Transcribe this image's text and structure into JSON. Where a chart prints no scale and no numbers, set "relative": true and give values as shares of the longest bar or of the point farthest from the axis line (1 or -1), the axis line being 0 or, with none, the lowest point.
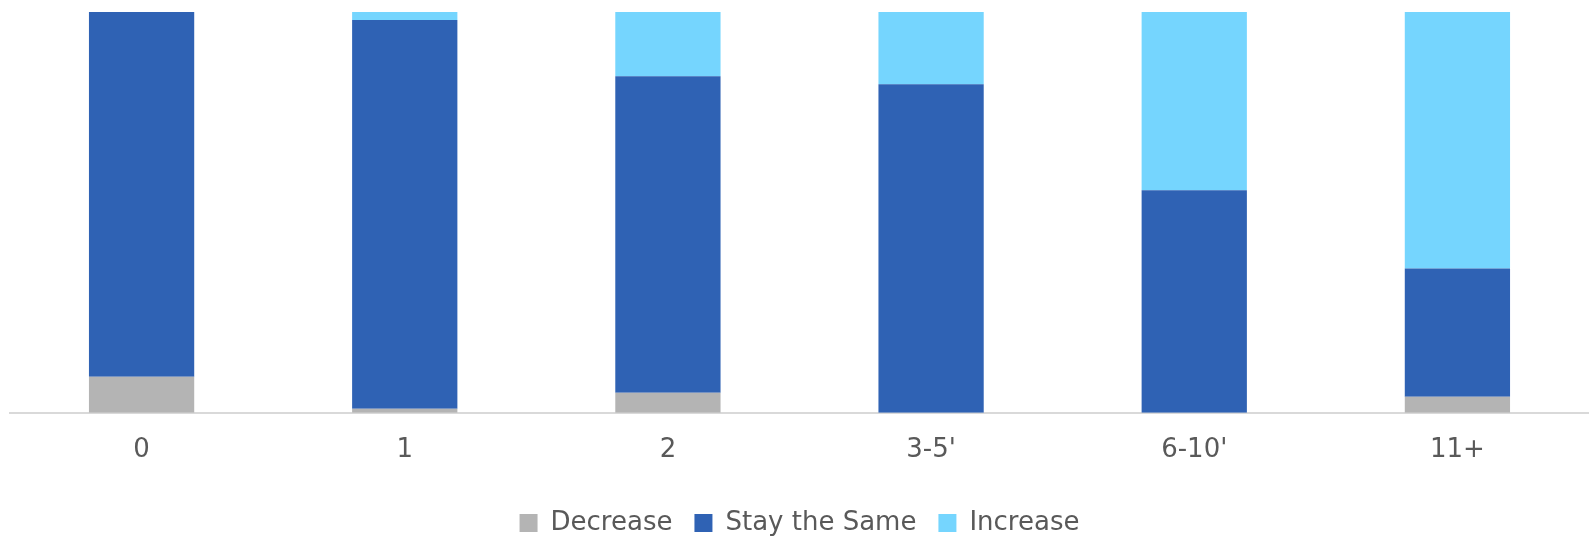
{
  "chart_data": {
    "type": "bar",
    "relative": true,
    "stacked": true,
    "categories": [
      "0",
      "1",
      "2",
      "3-5'",
      "6-10'",
      "11+"
    ],
    "series": [
      {
        "name": "Decrease",
        "color": "#b4b4b4",
        "values": [
          0.09,
          0.01,
          0.05,
          0,
          0,
          0.04
        ]
      },
      {
        "name": "Stay the Same",
        "color": "#2f62b4",
        "values": [
          0.91,
          0.97,
          0.79,
          0.82,
          0.555,
          0.32
        ]
      },
      {
        "name": "Increase",
        "color": "#75d5fe",
        "values": [
          0,
          0.02,
          0.16,
          0.18,
          0.445,
          0.64
        ]
      }
    ],
    "legend": "bottom",
    "grid": false
  }
}
